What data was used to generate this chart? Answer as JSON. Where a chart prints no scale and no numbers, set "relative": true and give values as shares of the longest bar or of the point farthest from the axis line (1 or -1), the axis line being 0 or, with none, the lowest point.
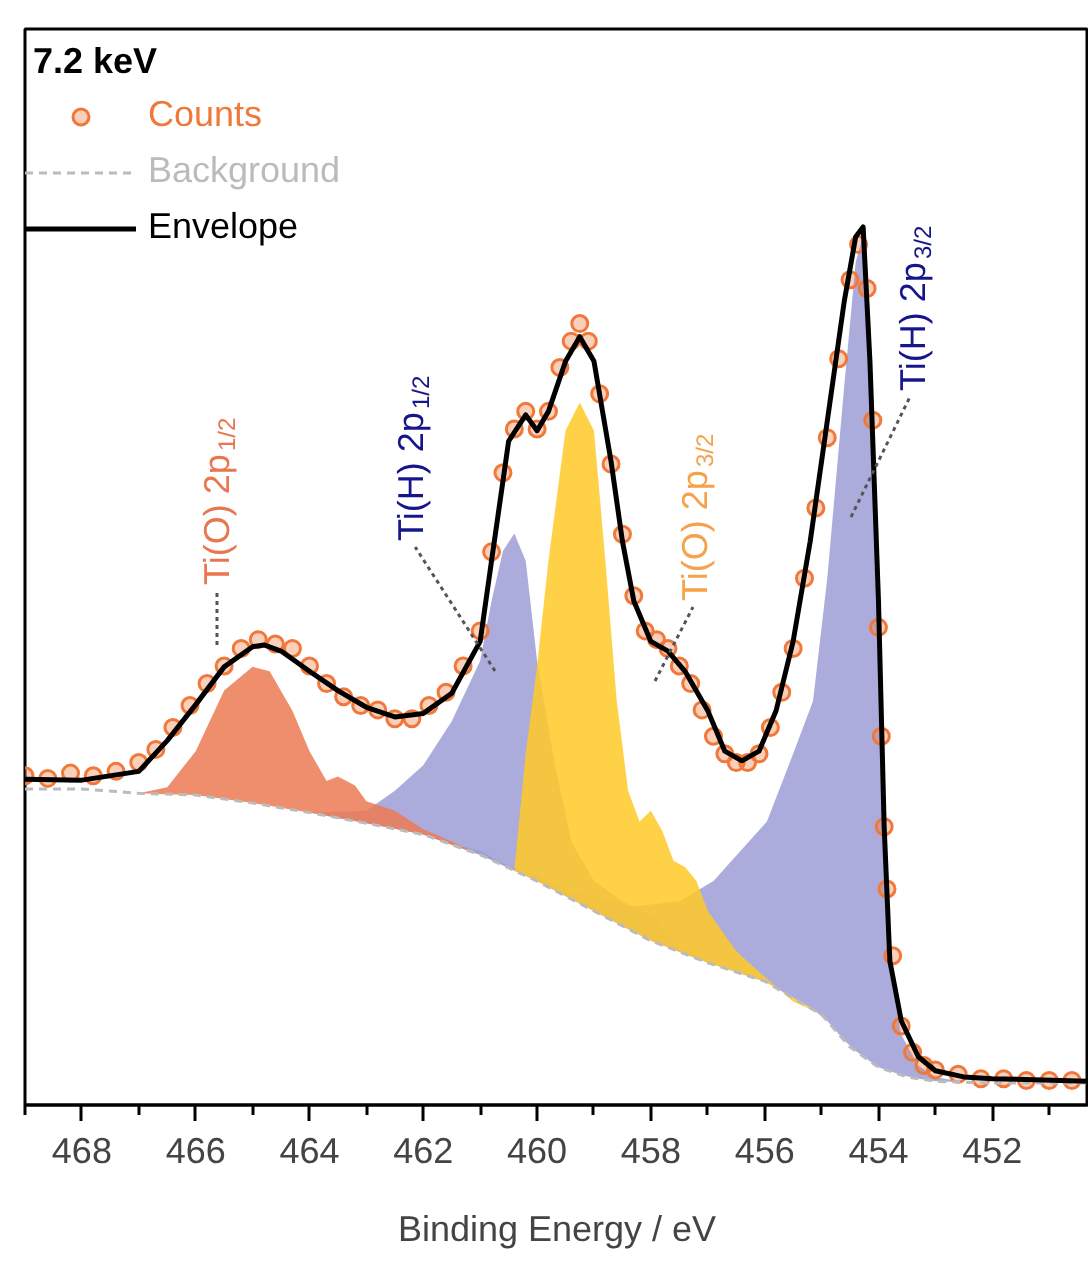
{
  "chart_data": {
    "type": "line",
    "title": "7.2 keV",
    "xlabel": "Binding Energy / eV",
    "relative": true,
    "xlim": [
      469,
      450.3
    ],
    "xticks": [
      {
        "value": 469,
        "label": null
      },
      468,
      {
        "value": 467,
        "label": null
      },
      466,
      {
        "value": 465,
        "label": null
      },
      464,
      {
        "value": 463,
        "label": null
      },
      462,
      {
        "value": 461,
        "label": null
      },
      460,
      {
        "value": 459,
        "label": null
      },
      458,
      {
        "value": 457,
        "label": null
      },
      456,
      {
        "value": 455,
        "label": null
      },
      454,
      {
        "value": 453,
        "label": null
      },
      452,
      {
        "value": 451,
        "label": null
      }
    ],
    "grid": false,
    "legend": "top left",
    "series": [
      {
        "type": "area",
        "color": "#9e9ed6",
        "x": [
          461.5,
          461.0,
          460.5,
          460.0,
          459.5,
          459.13,
          458.3,
          457.5,
          456.9,
          455.96,
          455.5,
          455.15,
          454.9,
          454.6,
          454.4,
          454.27,
          454.15,
          454.05,
          454.0,
          453.9,
          453.8,
          453.6,
          453.3,
          453.0,
          452.5
        ],
        "values": [
          0.297,
          0.29,
          0.272,
          0.262,
          0.245,
          0.239,
          0.226,
          0.232,
          0.255,
          0.323,
          0.4,
          0.46,
          0.6,
          0.82,
          0.96,
          0.99,
          0.9,
          0.7,
          0.55,
          0.3,
          0.15,
          0.08,
          0.045,
          0.032,
          0.026
        ]
      },
      {
        "type": "area",
        "color": "#9e9ed6",
        "x": [
          464.0,
          463.5,
          463.0,
          462.5,
          462.0,
          461.5,
          461.0,
          460.8,
          460.6,
          460.4,
          460.2,
          460.0,
          459.7,
          459.4,
          459.0,
          458.5,
          458.0,
          457.5,
          457.0
        ],
        "values": [
          0.333,
          0.334,
          0.335,
          0.358,
          0.387,
          0.437,
          0.506,
          0.574,
          0.631,
          0.651,
          0.62,
          0.506,
          0.392,
          0.3,
          0.255,
          0.232,
          0.214,
          0.18,
          0.162
        ]
      },
      {
        "type": "area",
        "color": "#ffc926",
        "x": [
          460.4,
          460.2,
          460.0,
          459.8,
          459.5,
          459.25,
          459.0,
          458.8,
          458.6,
          458.4,
          458.2,
          458.0,
          457.8,
          457.6,
          457.4,
          457.2,
          457.0,
          456.5,
          456.0,
          455.5,
          455.0
        ],
        "values": [
          0.267,
          0.4,
          0.5,
          0.62,
          0.768,
          0.8,
          0.768,
          0.62,
          0.46,
          0.358,
          0.323,
          0.335,
          0.312,
          0.278,
          0.271,
          0.255,
          0.221,
          0.175,
          0.146,
          0.118,
          0.103
        ]
      },
      {
        "type": "area",
        "color": "#ec7a52",
        "x": [
          467.0,
          466.5,
          466.0,
          465.5,
          465.0,
          464.7,
          464.3,
          464.0,
          463.7,
          463.5,
          463.2,
          463.0,
          462.5,
          462.0,
          461.5,
          461.0
        ],
        "values": [
          0.355,
          0.362,
          0.403,
          0.472,
          0.499,
          0.494,
          0.449,
          0.403,
          0.369,
          0.374,
          0.364,
          0.346,
          0.335,
          0.314,
          0.3,
          0.285
        ]
      },
      {
        "type": "scatter",
        "name": "Counts",
        "color": "#f0783a",
        "marker": "circle",
        "x": [
          469,
          468.6,
          468.2,
          467.8,
          467.4,
          467.0,
          466.7,
          466.4,
          466.1,
          465.8,
          465.5,
          465.2,
          464.9,
          464.6,
          464.3,
          464.0,
          463.7,
          463.4,
          463.1,
          462.8,
          462.5,
          462.2,
          461.9,
          461.6,
          461.3,
          461.0,
          460.8,
          460.6,
          460.4,
          460.2,
          460.0,
          459.8,
          459.6,
          459.4,
          459.25,
          459.1,
          458.9,
          458.7,
          458.5,
          458.3,
          458.1,
          457.9,
          457.7,
          457.5,
          457.3,
          457.1,
          456.9,
          456.7,
          456.5,
          456.3,
          456.1,
          455.9,
          455.7,
          455.5,
          455.3,
          455.1,
          454.9,
          454.7,
          454.5,
          454.35,
          454.2,
          454.1,
          454.0,
          453.95,
          453.9,
          453.85,
          453.75,
          453.6,
          453.4,
          453.2,
          453.0,
          452.6,
          452.2,
          451.8,
          451.4,
          451.0,
          450.6
        ],
        "values": [
          0.375,
          0.372,
          0.378,
          0.375,
          0.38,
          0.39,
          0.405,
          0.43,
          0.455,
          0.48,
          0.5,
          0.52,
          0.53,
          0.525,
          0.52,
          0.5,
          0.48,
          0.465,
          0.455,
          0.45,
          0.44,
          0.44,
          0.455,
          0.47,
          0.5,
          0.54,
          0.63,
          0.72,
          0.77,
          0.79,
          0.77,
          0.79,
          0.84,
          0.87,
          0.89,
          0.87,
          0.81,
          0.73,
          0.65,
          0.58,
          0.54,
          0.53,
          0.52,
          0.5,
          0.48,
          0.45,
          0.42,
          0.4,
          0.39,
          0.39,
          0.4,
          0.43,
          0.47,
          0.52,
          0.6,
          0.68,
          0.76,
          0.85,
          0.94,
          0.98,
          0.93,
          0.78,
          0.544,
          0.42,
          0.317,
          0.246,
          0.17,
          0.09,
          0.06,
          0.045,
          0.04,
          0.035,
          0.03,
          0.03,
          0.028,
          0.028,
          0.028
        ]
      },
      {
        "name": "Background",
        "color": "#bbbbbb",
        "line_style": "dashed",
        "x": [
          469,
          468,
          467,
          466,
          465,
          464,
          463,
          462,
          461,
          460,
          459,
          458,
          457,
          456,
          455,
          454.5,
          454,
          453.5,
          453,
          452,
          450.3
        ],
        "values": [
          0.36,
          0.36,
          0.355,
          0.353,
          0.344,
          0.333,
          0.321,
          0.308,
          0.285,
          0.255,
          0.221,
          0.187,
          0.162,
          0.141,
          0.103,
          0.066,
          0.043,
          0.032,
          0.027,
          0.025,
          0.025
        ]
      },
      {
        "name": "Envelope",
        "color": "#000000",
        "line_style": "solid",
        "x": [
          469,
          468,
          467,
          466.5,
          466,
          465.5,
          465,
          464.8,
          464.5,
          464,
          463.5,
          463,
          462.5,
          462,
          461.5,
          461,
          460.8,
          460.5,
          460.2,
          460.0,
          459.8,
          459.5,
          459.25,
          459.0,
          458.7,
          458.5,
          458.3,
          458.0,
          457.7,
          457.4,
          457.0,
          456.7,
          456.4,
          456.1,
          455.8,
          455.5,
          455.2,
          454.9,
          454.6,
          454.4,
          454.27,
          454.15,
          454.0,
          453.9,
          453.8,
          453.6,
          453.3,
          453.0,
          452.5,
          452,
          450.3
        ],
        "values": [
          0.371,
          0.37,
          0.38,
          0.415,
          0.456,
          0.499,
          0.522,
          0.524,
          0.517,
          0.494,
          0.472,
          0.453,
          0.442,
          0.446,
          0.469,
          0.528,
          0.62,
          0.756,
          0.786,
          0.768,
          0.79,
          0.847,
          0.875,
          0.847,
          0.733,
          0.642,
          0.574,
          0.528,
          0.517,
          0.494,
          0.449,
          0.403,
          0.392,
          0.403,
          0.449,
          0.528,
          0.642,
          0.779,
          0.916,
          0.989,
          1.0,
          0.847,
          0.574,
          0.317,
          0.164,
          0.096,
          0.055,
          0.039,
          0.032,
          0.03,
          0.027
        ]
      }
    ],
    "annotations": [
      "Ti(O) 2p$_{1/2}$",
      "Ti(H) 2p$_{1/2}$",
      "Ti(O) 2p$_{3/2}$",
      "Ti(H) 2p$_{3/2}$"
    ]
  }
}
